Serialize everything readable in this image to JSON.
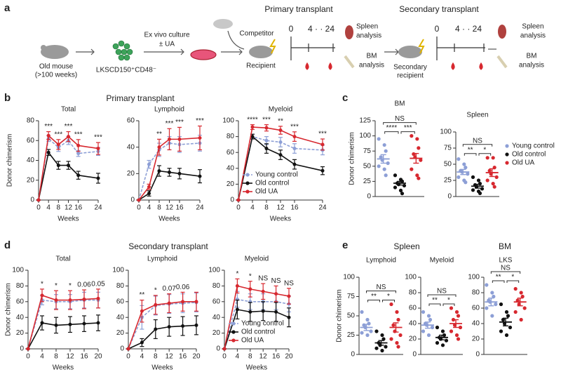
{
  "panels": [
    "a",
    "b",
    "c",
    "d",
    "e"
  ],
  "headings": [
    "Primary transplant",
    "Secondary transplant",
    "Spleen",
    "BM"
  ],
  "schematic": {
    "old_mouse": "Old mouse",
    "age": "(>100 weeks)",
    "culture": "Ex vivo culture",
    "treatment": "± UA",
    "cells": "LKSCD150⁺CD48⁻",
    "competitor": "Competitor",
    "primary": "Primary transplant",
    "recipient": "Recipient",
    "primary_timeline": [
      "0",
      "4 · · 24"
    ],
    "spleen1": [
      "Spleen",
      "analysis"
    ],
    "bm1": [
      "BM",
      "analysis"
    ],
    "secondary": "Secondary transplant",
    "secondary_recipient": [
      "Secondary",
      "recipient"
    ],
    "secondary_timeline": [
      "0",
      "4 · · 24"
    ],
    "spleen2": [
      "Spleen",
      "analysis"
    ],
    "bm2": [
      "BM",
      "analysis"
    ]
  },
  "chart_data": [
    {
      "type": "line",
      "title": "Total",
      "ylabel": "Donor chimerism",
      "xlabel": "Weeks",
      "x": [
        0,
        4,
        8,
        12,
        16,
        24
      ],
      "xlim": [
        0,
        24
      ],
      "xticks": [
        0,
        4,
        8,
        12,
        16,
        24
      ],
      "ylim": [
        0,
        80
      ],
      "yticks": [
        0,
        20,
        40,
        60,
        80
      ],
      "series": [
        {
          "color": "#8d9fd6",
          "dash": true,
          "values": [
            0,
            62,
            53,
            60,
            47,
            49
          ],
          "errors": [
            0,
            3,
            4,
            4,
            3,
            4
          ]
        },
        {
          "color": "#111111",
          "values": [
            0,
            48,
            35,
            35,
            25,
            22
          ],
          "errors": [
            0,
            3,
            4,
            4,
            4,
            5
          ]
        },
        {
          "color": "#d7282f",
          "values": [
            0,
            65,
            56,
            64,
            55,
            52
          ],
          "errors": [
            0,
            4,
            5,
            5,
            6,
            6
          ]
        }
      ],
      "annotations": [
        {
          "x": 4,
          "label": "***"
        },
        {
          "x": 8,
          "label": "***"
        },
        {
          "x": 12,
          "label": "***"
        },
        {
          "x": 16,
          "label": "***"
        },
        {
          "x": 24,
          "label": "***"
        }
      ]
    },
    {
      "type": "line",
      "title": "Lymphoid",
      "xlabel": "Weeks",
      "x": [
        0,
        4,
        8,
        12,
        16,
        24
      ],
      "xlim": [
        0,
        24
      ],
      "xticks": [
        0,
        4,
        8,
        12,
        16,
        24
      ],
      "ylim": [
        0,
        60
      ],
      "yticks": [
        0,
        20,
        40,
        60
      ],
      "series": [
        {
          "color": "#8d9fd6",
          "dash": true,
          "values": [
            0,
            27,
            38,
            43,
            42,
            43
          ],
          "errors": [
            0,
            3,
            5,
            5,
            6,
            6
          ]
        },
        {
          "color": "#111111",
          "values": [
            0,
            5,
            22,
            21,
            20,
            18
          ],
          "errors": [
            0,
            2,
            4,
            3,
            4,
            5
          ]
        },
        {
          "color": "#d7282f",
          "values": [
            0,
            10,
            40,
            46,
            46,
            47
          ],
          "errors": [
            0,
            2,
            6,
            8,
            9,
            9
          ]
        }
      ],
      "annotations": [
        {
          "x": 8,
          "label": "**"
        },
        {
          "x": 12,
          "label": "***"
        },
        {
          "x": 16,
          "label": "***"
        },
        {
          "x": 24,
          "label": "***"
        }
      ]
    },
    {
      "type": "line",
      "title": "Myeloid",
      "xlabel": "Weeks",
      "legend": "lower left",
      "x": [
        0,
        4,
        8,
        12,
        16,
        24
      ],
      "xlim": [
        0,
        24
      ],
      "xticks": [
        0,
        4,
        8,
        12,
        16,
        24
      ],
      "ylim": [
        0,
        100
      ],
      "yticks": [
        0,
        20,
        40,
        60,
        80,
        100
      ],
      "series": [
        {
          "name": "Young control",
          "color": "#8d9fd6",
          "dash": true,
          "values": [
            0,
            80,
            75,
            73,
            65,
            63
          ],
          "errors": [
            0,
            3,
            5,
            6,
            6,
            6
          ]
        },
        {
          "name": "Old control",
          "color": "#111111",
          "values": [
            0,
            80,
            65,
            57,
            45,
            37
          ],
          "errors": [
            0,
            3,
            6,
            6,
            6,
            5
          ]
        },
        {
          "name": "Old UA",
          "color": "#d7282f",
          "values": [
            0,
            92,
            91,
            88,
            80,
            70
          ],
          "errors": [
            0,
            3,
            4,
            5,
            6,
            7
          ]
        }
      ],
      "annotations": [
        {
          "x": 4,
          "label": "****"
        },
        {
          "x": 8,
          "label": "***"
        },
        {
          "x": 12,
          "label": "**"
        },
        {
          "x": 16,
          "label": "***"
        },
        {
          "x": 24,
          "label": "***"
        }
      ]
    },
    {
      "type": "strip",
      "title": "BM",
      "ylabel": "Donor chimerism",
      "ylim": [
        0,
        125
      ],
      "yticks": [
        0,
        25,
        50,
        75,
        100,
        125
      ],
      "series": [
        {
          "color": "#8d9fd6",
          "values": [
            95,
            85,
            75,
            65,
            60,
            55,
            50,
            45,
            35
          ],
          "mean": 62,
          "sem": 7
        },
        {
          "color": "#111111",
          "values": [
            35,
            28,
            25,
            22,
            20,
            18,
            15,
            10,
            5
          ],
          "mean": 22,
          "sem": 3
        },
        {
          "color": "#d7282f",
          "values": [
            100,
            95,
            80,
            70,
            65,
            60,
            45,
            35,
            30
          ],
          "mean": 63,
          "sem": 8
        }
      ],
      "comparisons": [
        {
          "pair": [
            0,
            1
          ],
          "label": "****"
        },
        {
          "pair": [
            1,
            2
          ],
          "label": "***"
        },
        {
          "pair": [
            0,
            2
          ],
          "label": "NS"
        }
      ]
    },
    {
      "type": "strip",
      "title": "Spleen",
      "legend": "right",
      "ylim": [
        0,
        100
      ],
      "yticks": [
        0,
        25,
        50,
        75,
        100
      ],
      "series": [
        {
          "name": "Young control",
          "color": "#8d9fd6",
          "values": [
            58,
            50,
            45,
            40,
            38,
            35,
            30,
            25,
            22
          ],
          "mean": 38,
          "sem": 4
        },
        {
          "name": "Old control",
          "color": "#111111",
          "values": [
            30,
            25,
            20,
            18,
            15,
            12,
            10,
            8,
            5
          ],
          "mean": 16,
          "sem": 3
        },
        {
          "name": "Old UA",
          "color": "#d7282f",
          "values": [
            60,
            60,
            45,
            40,
            35,
            30,
            25,
            20,
            15
          ],
          "mean": 37,
          "sem": 6
        }
      ],
      "comparisons": [
        {
          "pair": [
            0,
            1
          ],
          "label": "**"
        },
        {
          "pair": [
            1,
            2
          ],
          "label": "*"
        },
        {
          "pair": [
            0,
            2
          ],
          "label": "NS"
        }
      ]
    },
    {
      "type": "line",
      "title": "Total",
      "ylabel": "Donor chimerism",
      "xlabel": "Weeks",
      "x": [
        0,
        4,
        8,
        12,
        16,
        20
      ],
      "xlim": [
        0,
        20
      ],
      "xticks": [
        0,
        4,
        8,
        12,
        16,
        20
      ],
      "ylim": [
        0,
        100
      ],
      "yticks": [
        0,
        20,
        40,
        60,
        80,
        100
      ],
      "series": [
        {
          "color": "#8d9fd6",
          "dash": true,
          "values": [
            0,
            62,
            60,
            60,
            62,
            62
          ],
          "errors": [
            0,
            6,
            9,
            9,
            10,
            10
          ]
        },
        {
          "color": "#111111",
          "values": [
            0,
            33,
            30,
            31,
            32,
            33
          ],
          "errors": [
            0,
            9,
            10,
            10,
            10,
            10
          ]
        },
        {
          "color": "#d7282f",
          "values": [
            0,
            68,
            62,
            62,
            63,
            64
          ],
          "errors": [
            0,
            8,
            12,
            12,
            12,
            12
          ]
        }
      ],
      "annotations": [
        {
          "x": 4,
          "label": "*"
        },
        {
          "x": 8,
          "label": "*"
        },
        {
          "x": 12,
          "label": "*"
        },
        {
          "x": 16,
          "label": "0.06"
        },
        {
          "x": 20,
          "label": "0.05"
        }
      ]
    },
    {
      "type": "line",
      "title": "Lymphoid",
      "xlabel": "Weeks",
      "x": [
        0,
        4,
        8,
        12,
        16,
        20
      ],
      "xlim": [
        0,
        20
      ],
      "xticks": [
        0,
        4,
        8,
        12,
        16,
        20
      ],
      "ylim": [
        0,
        100
      ],
      "yticks": [
        0,
        20,
        40,
        60,
        80,
        100
      ],
      "series": [
        {
          "color": "#8d9fd6",
          "dash": true,
          "values": [
            0,
            40,
            55,
            57,
            58,
            59
          ],
          "errors": [
            0,
            15,
            12,
            12,
            12,
            12
          ]
        },
        {
          "color": "#111111",
          "values": [
            0,
            8,
            25,
            28,
            29,
            30
          ],
          "errors": [
            0,
            5,
            12,
            12,
            12,
            12
          ]
        },
        {
          "color": "#d7282f",
          "values": [
            0,
            48,
            56,
            58,
            60,
            60
          ],
          "errors": [
            0,
            14,
            12,
            12,
            12,
            12
          ]
        }
      ],
      "annotations": [
        {
          "x": 4,
          "label": "**"
        },
        {
          "x": 8,
          "label": "*"
        },
        {
          "x": 12,
          "label": "0.07"
        },
        {
          "x": 16,
          "label": "0.06"
        }
      ]
    },
    {
      "type": "line",
      "title": "Myeloid",
      "xlabel": "Weeks",
      "legend": "lower left",
      "x": [
        0,
        4,
        8,
        12,
        16,
        20
      ],
      "xlim": [
        0,
        20
      ],
      "xticks": [
        0,
        4,
        8,
        12,
        16,
        20
      ],
      "ylim": [
        0,
        100
      ],
      "yticks": [
        0,
        20,
        40,
        60,
        80,
        100
      ],
      "series": [
        {
          "name": "Young control",
          "color": "#8d9fd6",
          "dash": true,
          "values": [
            0,
            63,
            60,
            60,
            60,
            57
          ],
          "errors": [
            0,
            10,
            10,
            10,
            10,
            10
          ]
        },
        {
          "name": "Old control",
          "color": "#111111",
          "values": [
            0,
            50,
            47,
            48,
            47,
            40
          ],
          "errors": [
            0,
            12,
            12,
            12,
            12,
            12
          ]
        },
        {
          "name": "Old UA",
          "color": "#d7282f",
          "values": [
            0,
            80,
            76,
            73,
            70,
            67
          ],
          "errors": [
            0,
            9,
            10,
            10,
            10,
            10
          ]
        }
      ],
      "annotations": [
        {
          "x": 4,
          "label": "*"
        },
        {
          "x": 8,
          "label": "*"
        },
        {
          "x": 12,
          "label": "NS"
        },
        {
          "x": 16,
          "label": "NS"
        },
        {
          "x": 20,
          "label": "NS"
        }
      ]
    },
    {
      "type": "strip",
      "title": "Lymphoid",
      "ylabel": "Donor chimerism",
      "ylim": [
        0,
        100
      ],
      "yticks": [
        0,
        25,
        50,
        75,
        100
      ],
      "series": [
        {
          "color": "#8d9fd6",
          "values": [
            55,
            45,
            40,
            38,
            35,
            30,
            28,
            25
          ],
          "mean": 35,
          "sem": 4
        },
        {
          "color": "#111111",
          "values": [
            30,
            25,
            20,
            15,
            12,
            10,
            8,
            5
          ],
          "mean": 15,
          "sem": 3
        },
        {
          "color": "#d7282f",
          "values": [
            65,
            55,
            45,
            38,
            30,
            25,
            20,
            15,
            10
          ],
          "mean": 35,
          "sem": 6
        }
      ],
      "comparisons": [
        {
          "pair": [
            0,
            1
          ],
          "label": "**"
        },
        {
          "pair": [
            1,
            2
          ],
          "label": "*"
        },
        {
          "pair": [
            0,
            2
          ],
          "label": "NS"
        }
      ]
    },
    {
      "type": "strip",
      "title": "Myeloid",
      "ylim": [
        0,
        100
      ],
      "yticks": [
        0,
        20,
        40,
        60,
        80,
        100
      ],
      "series": [
        {
          "color": "#8d9fd6",
          "values": [
            55,
            50,
            45,
            40,
            38,
            35,
            30,
            25
          ],
          "mean": 38,
          "sem": 4
        },
        {
          "color": "#111111",
          "values": [
            35,
            30,
            25,
            22,
            20,
            18,
            15,
            12
          ],
          "mean": 22,
          "sem": 3
        },
        {
          "color": "#d7282f",
          "values": [
            60,
            55,
            50,
            45,
            38,
            35,
            30,
            25,
            20
          ],
          "mean": 40,
          "sem": 5
        }
      ],
      "comparisons": [
        {
          "pair": [
            0,
            1
          ],
          "label": "**"
        },
        {
          "pair": [
            1,
            2
          ],
          "label": "*"
        },
        {
          "pair": [
            0,
            2
          ],
          "label": "NS"
        }
      ]
    },
    {
      "type": "strip",
      "title": "LKS",
      "ylim": [
        0,
        100
      ],
      "yticks": [
        0,
        20,
        40,
        60,
        80,
        100
      ],
      "series": [
        {
          "color": "#8d9fd6",
          "values": [
            90,
            80,
            75,
            70,
            68,
            65,
            60,
            50
          ],
          "mean": 68,
          "sem": 5
        },
        {
          "color": "#111111",
          "values": [
            65,
            55,
            50,
            45,
            40,
            35,
            30,
            25
          ],
          "mean": 42,
          "sem": 5
        },
        {
          "color": "#d7282f",
          "values": [
            85,
            80,
            75,
            70,
            65,
            60,
            55,
            45
          ],
          "mean": 68,
          "sem": 5
        }
      ],
      "comparisons": [
        {
          "pair": [
            0,
            1
          ],
          "label": "**"
        },
        {
          "pair": [
            1,
            2
          ],
          "label": "*"
        },
        {
          "pair": [
            0,
            2
          ],
          "label": "NS"
        }
      ]
    }
  ]
}
